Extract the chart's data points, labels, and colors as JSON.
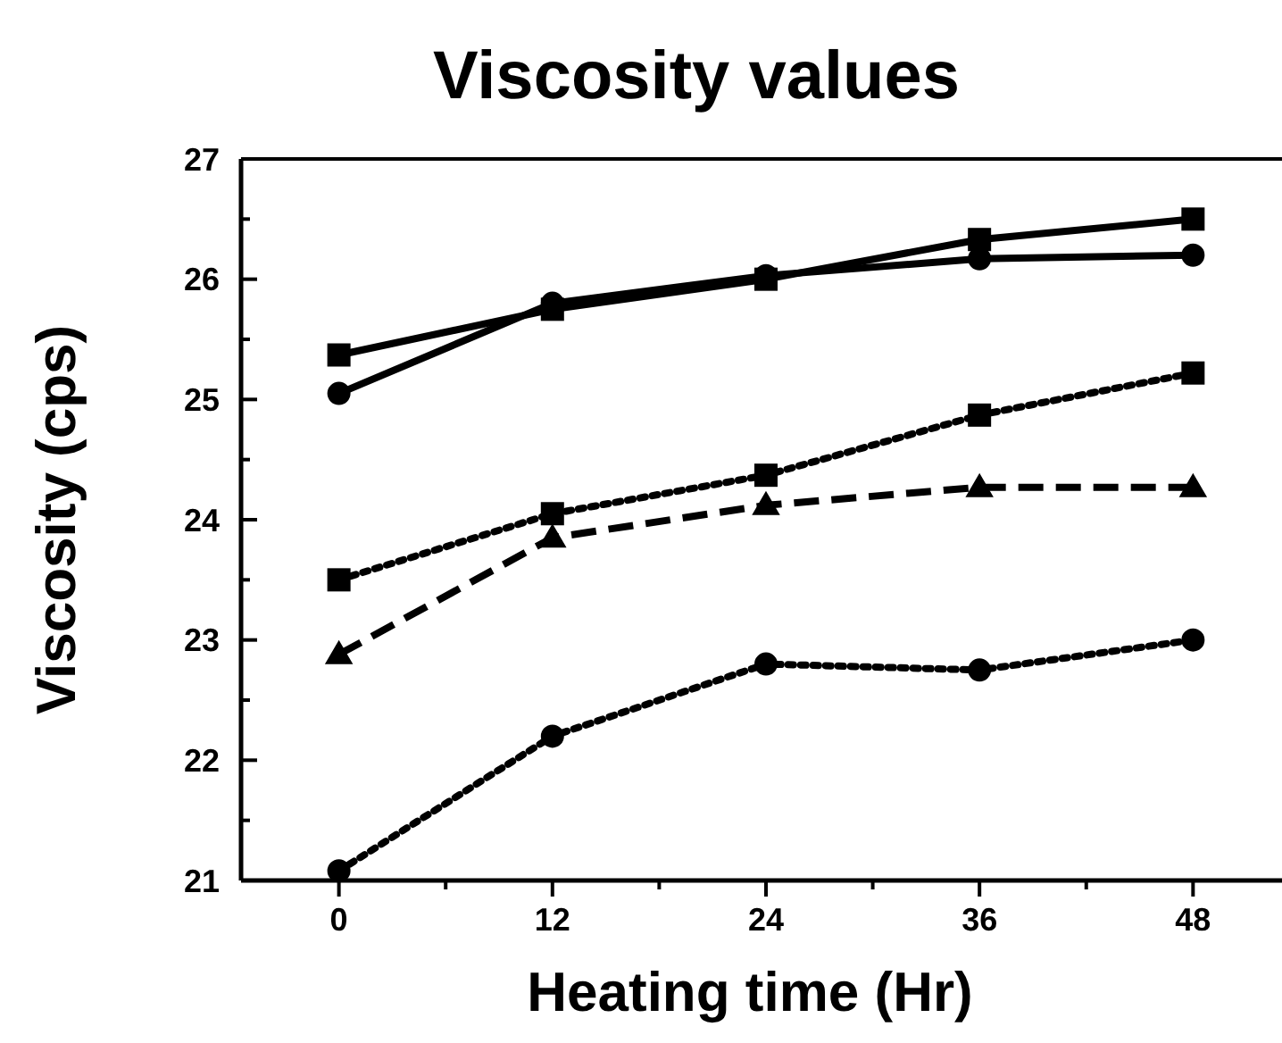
{
  "chart_data": {
    "type": "line",
    "title": "Viscosity values",
    "xlabel": "Heating time (Hr)",
    "ylabel": "Viscosity (cps)",
    "x": [
      0,
      12,
      24,
      36,
      48
    ],
    "xlim": [
      -5.5,
      53
    ],
    "xticks": [
      0,
      {
        "value": 6,
        "label": null
      },
      12,
      {
        "value": 18,
        "label": null
      },
      24,
      {
        "value": 30,
        "label": null
      },
      36,
      {
        "value": 42,
        "label": null
      },
      48
    ],
    "ylim": [
      21,
      27
    ],
    "yticks": [
      21,
      {
        "value": 21.5,
        "label": null
      },
      22,
      {
        "value": 22.5,
        "label": null
      },
      23,
      {
        "value": 23.5,
        "label": null
      },
      24,
      {
        "value": 24.5,
        "label": null
      },
      25,
      {
        "value": 25.5,
        "label": null
      },
      26,
      {
        "value": 26.5,
        "label": null
      },
      27
    ],
    "grid": false,
    "series": [
      {
        "color": "#000000",
        "marker": "square",
        "line_style": "solid",
        "values": [
          25.37,
          25.75,
          26.0,
          26.33,
          26.5
        ]
      },
      {
        "color": "#000000",
        "marker": "circle",
        "line_style": "solid",
        "values": [
          25.05,
          25.8,
          26.03,
          26.17,
          26.2
        ]
      },
      {
        "color": "#000000",
        "marker": "square",
        "line_style": "dotted",
        "values": [
          23.5,
          24.05,
          24.37,
          24.87,
          25.22
        ]
      },
      {
        "color": "#000000",
        "marker": "triangle",
        "line_style": "dashed",
        "values": [
          22.88,
          23.85,
          24.12,
          24.27,
          24.27
        ]
      },
      {
        "color": "#000000",
        "marker": "circle",
        "line_style": "dotted",
        "values": [
          21.08,
          22.2,
          22.8,
          22.75,
          23.0
        ]
      }
    ]
  }
}
